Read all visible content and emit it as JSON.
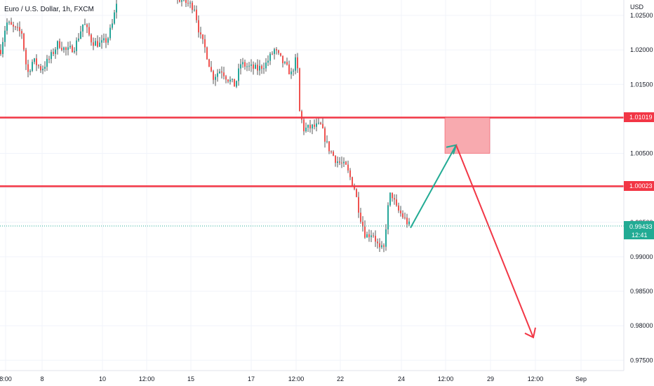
{
  "chart_data": {
    "type": "candlestick",
    "title": "Euro / U.S. Dollar, 1h, FXCM",
    "currency_label": "USD",
    "colors": {
      "up": "#26a69a",
      "down": "#ef5350",
      "wick": "#555555",
      "level_line": "#f23645",
      "zone_fill": "#f7a1a6",
      "zone_border": "#f23645",
      "projection_up": "#22ab94",
      "projection_down": "#f23645",
      "price_label": "#22ab94",
      "grid": "#f0f3fa"
    },
    "y_axis": {
      "range": [
        0.9725,
        1.0275
      ],
      "ticks": [
        "1.02500",
        "1.02000",
        "1.01500",
        "1.01000",
        "1.00500",
        "1.00000",
        "0.99500",
        "0.99000",
        "0.98500",
        "0.98000",
        "0.97500"
      ]
    },
    "x_axis": {
      "ticks": [
        "8:00",
        "8",
        "10",
        "12:00",
        "15",
        "17",
        "12:00",
        "22",
        "24",
        "12:00",
        "29",
        "12:00",
        "Sep"
      ]
    },
    "levels": [
      {
        "label": "1.01019",
        "price": 1.01019
      },
      {
        "label": "1.00023",
        "price": 1.00023
      }
    ],
    "current_price": {
      "label": "0.99433",
      "time_left": "12:41",
      "price": 0.99433
    },
    "zone": {
      "top": 1.0102,
      "bottom": 1.005
    },
    "projection": {
      "start_price": 0.9942,
      "peak_price": 1.0062,
      "end_price": 0.9783
    },
    "series": [
      {
        "segment": "early",
        "start": 1.0215,
        "end": 1.0225,
        "low": 1.0145,
        "high": 1.0275
      },
      {
        "segment": "middle",
        "start": 1.0265,
        "end": 1.0143,
        "low": 1.0125,
        "high": 1.0275
      },
      {
        "segment": "late",
        "start": 1.0143,
        "end": 0.9943,
        "low": 0.99,
        "high": 1.0205
      }
    ]
  }
}
